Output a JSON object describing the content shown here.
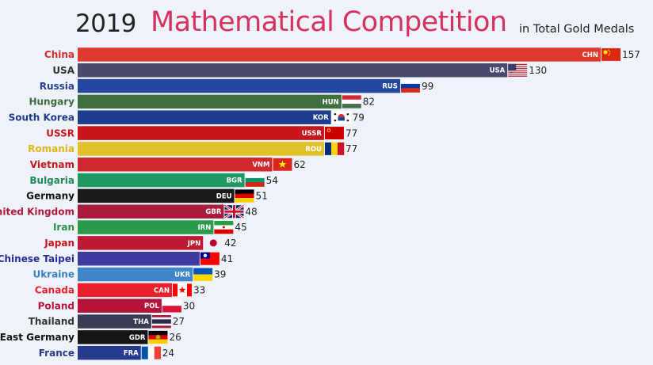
{
  "header": {
    "year": "2019",
    "title": "Mathematical Competition",
    "subtitle": "in Total Gold Medals"
  },
  "chart_data": {
    "type": "bar",
    "orientation": "horizontal",
    "title": "Mathematical Competition",
    "subtitle": "in Total Gold Medals",
    "period": "2019",
    "xlim": [
      0,
      157
    ],
    "grid": false,
    "legend": "none",
    "categories": [
      "China",
      "USA",
      "Russia",
      "Hungary",
      "South Korea",
      "USSR",
      "Romania",
      "Vietnam",
      "Bulgaria",
      "Germany",
      "United Kingdom",
      "Iran",
      "Japan",
      "Chinese Taipei",
      "Ukraine",
      "Canada",
      "Poland",
      "Thailand",
      "East Germany",
      "France"
    ],
    "codes": [
      "CHN",
      "USA",
      "RUS",
      "HUN",
      "KOR",
      "USSR",
      "ROU",
      "VNM",
      "BGR",
      "DEU",
      "GBR",
      "IRN",
      "JPN",
      "",
      "UKR",
      "CAN",
      "POL",
      "THA",
      "GDR",
      "FRA"
    ],
    "values": [
      157,
      130,
      99,
      82,
      79,
      77,
      77,
      62,
      54,
      51,
      48,
      45,
      42,
      41,
      39,
      33,
      30,
      27,
      26,
      24
    ],
    "bar_colors": [
      "#e03a2f",
      "#4a4a6e",
      "#22479c",
      "#3f6f3f",
      "#1e3d8f",
      "#c8151c",
      "#e0c12a",
      "#d0282f",
      "#1f9a63",
      "#1a1a1a",
      "#a81c3d",
      "#2b9a4a",
      "#bf1a35",
      "#3d3aa0",
      "#3f86c8",
      "#e8212a",
      "#b5133a",
      "#3b3b55",
      "#151515",
      "#273b8e"
    ],
    "label_colors": [
      "#d7282f",
      "#333333",
      "#2a3f8f",
      "#3e6b3e",
      "#1e3a8a",
      "#c8151c",
      "#e2b51a",
      "#c8151c",
      "#1e8a57",
      "#111111",
      "#b0183c",
      "#2a8f46",
      "#c8151c",
      "#2a2a9a",
      "#3a7fc0",
      "#e8212a",
      "#b5133a",
      "#333333",
      "#111111",
      "#273b8e"
    ],
    "flags": [
      "china-flag-icon",
      "usa-flag-icon",
      "russia-flag-icon",
      "hungary-flag-icon",
      "south-korea-flag-icon",
      "ussr-flag-icon",
      "romania-flag-icon",
      "vietnam-flag-icon",
      "bulgaria-flag-icon",
      "germany-flag-icon",
      "uk-flag-icon",
      "iran-flag-icon",
      "japan-flag-icon",
      "chinese-taipei-flag-icon",
      "ukraine-flag-icon",
      "canada-flag-icon",
      "poland-flag-icon",
      "thailand-flag-icon",
      "east-germany-flag-icon",
      "france-flag-icon"
    ]
  }
}
